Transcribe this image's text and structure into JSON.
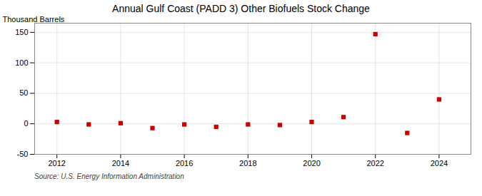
{
  "chart_data": {
    "type": "scatter",
    "title": "Annual Gulf Coast (PADD 3) Other Biofuels Stock Change",
    "ylabel": "Thousand Barrels",
    "source": "Source: U.S. Energy Information Administration",
    "x": [
      2012,
      2013,
      2014,
      2015,
      2016,
      2017,
      2018,
      2019,
      2020,
      2021,
      2022,
      2023,
      2024
    ],
    "values": [
      3,
      -1,
      1,
      -7,
      -1,
      -5,
      -1,
      -2,
      3,
      11,
      147,
      -15,
      40
    ],
    "color": "#cc0000",
    "marker": "square",
    "xlim": [
      2011.3,
      2025.0
    ],
    "xticks": [
      2012,
      2014,
      2016,
      2018,
      2020,
      2022,
      2024
    ],
    "ylim": [
      -50,
      165
    ],
    "yticks": [
      -50,
      0,
      50,
      100,
      150
    ],
    "grid": true
  }
}
